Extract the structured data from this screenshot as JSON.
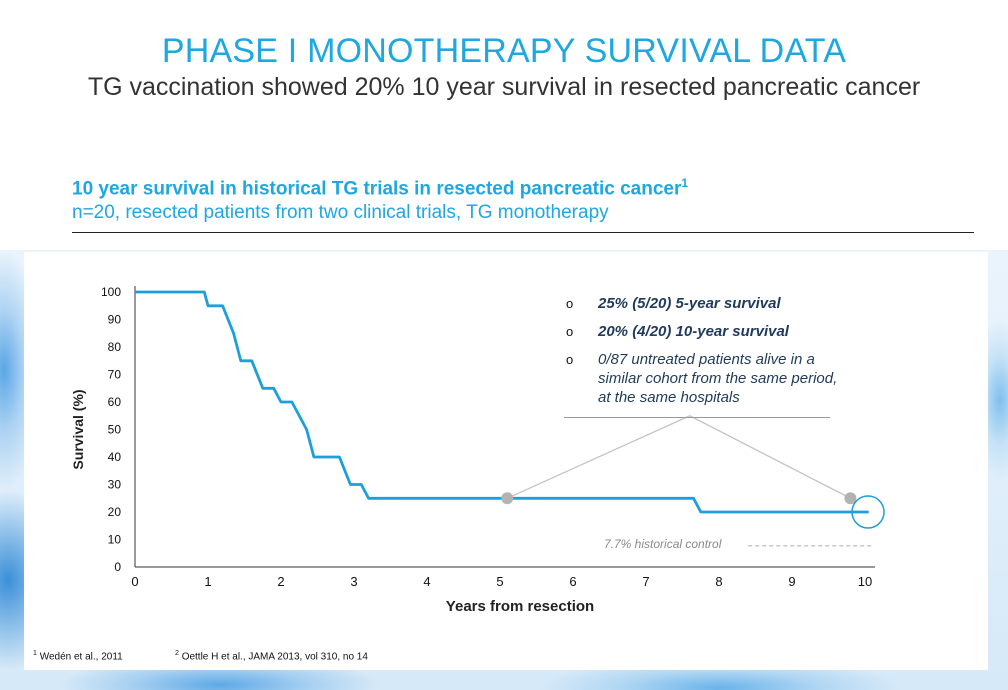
{
  "header": {
    "title": "PHASE I MONOTHERAPY SURVIVAL DATA",
    "subtitle": "TG vaccination showed 20% 10 year survival in resected pancreatic cancer"
  },
  "section": {
    "heading": "10 year survival in historical TG trials in resected pancreatic cancer",
    "heading_sup": "1",
    "subheading": "n=20, resected patients from two clinical trials, TG monotherapy"
  },
  "notes": [
    {
      "bullet": "o",
      "text": "25% (5/20) 5-year survival",
      "bold": true
    },
    {
      "bullet": "o",
      "text": "20% (4/20) 10-year survival",
      "bold": true
    },
    {
      "bullet": "o",
      "text": "0/87 untreated patients alive in a similar cohort from the same period, at the same hospitals",
      "bold": false
    }
  ],
  "footnotes": [
    {
      "sup": "1",
      "text": "Wedén et al., 2011"
    },
    {
      "sup": "2",
      "text": "Oettle H et al., JAMA 2013, vol 310, no 14"
    }
  ],
  "colors": {
    "accent": "#1ea7e1",
    "curve": "#1c9fda",
    "marker": "#b3b3b3",
    "text_dark": "#1f3a5c"
  },
  "chart_data": {
    "type": "line",
    "title": "",
    "xlabel": "Years from resection",
    "ylabel": "Survival (%)",
    "xlim": [
      0,
      10
    ],
    "ylim": [
      0,
      100
    ],
    "xticks": [
      0,
      1,
      2,
      3,
      4,
      5,
      6,
      7,
      8,
      9,
      10
    ],
    "yticks": [
      0,
      10,
      20,
      30,
      40,
      50,
      60,
      70,
      80,
      90,
      100
    ],
    "grid": false,
    "series": [
      {
        "name": "",
        "step": true,
        "points": [
          [
            0,
            100
          ],
          [
            0.95,
            100
          ],
          [
            1.0,
            95
          ],
          [
            1.2,
            95
          ],
          [
            1.35,
            85
          ],
          [
            1.45,
            75
          ],
          [
            1.6,
            75
          ],
          [
            1.75,
            65
          ],
          [
            1.9,
            65
          ],
          [
            2.0,
            60
          ],
          [
            2.15,
            60
          ],
          [
            2.35,
            50
          ],
          [
            2.45,
            40
          ],
          [
            2.8,
            40
          ],
          [
            2.95,
            30
          ],
          [
            3.1,
            30
          ],
          [
            3.2,
            25
          ],
          [
            7.65,
            25
          ],
          [
            7.75,
            20
          ],
          [
            10.05,
            20
          ]
        ]
      }
    ],
    "historical_control": {
      "label": "7.7% historical control",
      "value": 7.7,
      "x_start": 8.4,
      "x_end": 10.1
    },
    "markers": [
      {
        "x": 5.1,
        "y": 25
      },
      {
        "x": 9.8,
        "y": 25
      }
    ],
    "highlight_circle": {
      "x": 10.0,
      "y": 20
    },
    "callout_lines": [
      {
        "from": [
          5.1,
          25
        ],
        "to": [
          7.6,
          55
        ]
      },
      {
        "from": [
          7.6,
          55
        ],
        "to": [
          9.8,
          25
        ]
      }
    ]
  }
}
